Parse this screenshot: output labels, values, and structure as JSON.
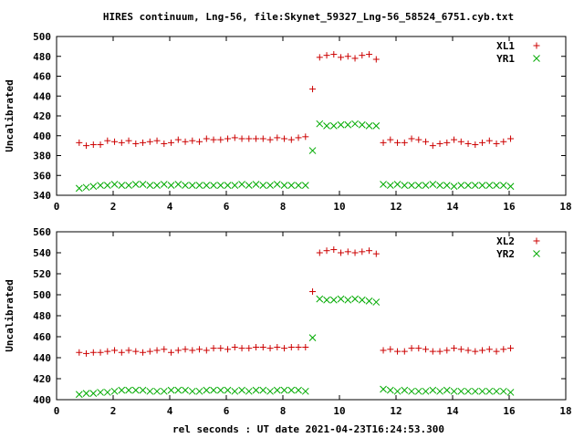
{
  "title": "HIRES continuum, Lng-56, file:Skynet_59327_Lng-56_58524_6751.cyb.txt",
  "xlabel": "rel seconds : UT date 2021-04-23T16:24:53.300",
  "chart_data": [
    {
      "type": "scatter",
      "ylabel": "Uncalibrated",
      "xlim": [
        0,
        18
      ],
      "ylim": [
        340,
        500
      ],
      "x_ticks": [
        0,
        2,
        4,
        6,
        8,
        10,
        12,
        14,
        16,
        18
      ],
      "y_ticks": [
        340,
        360,
        380,
        400,
        420,
        440,
        460,
        480,
        500
      ],
      "legend_position": "top-right",
      "x": [
        0.8,
        1.05,
        1.3,
        1.55,
        1.8,
        2.05,
        2.3,
        2.55,
        2.8,
        3.05,
        3.3,
        3.55,
        3.8,
        4.05,
        4.3,
        4.55,
        4.8,
        5.05,
        5.3,
        5.55,
        5.8,
        6.05,
        6.3,
        6.55,
        6.8,
        7.05,
        7.3,
        7.55,
        7.8,
        8.05,
        8.3,
        8.55,
        8.8,
        9.05,
        9.3,
        9.55,
        9.8,
        10.05,
        10.3,
        10.55,
        10.8,
        11.05,
        11.3,
        11.55,
        11.8,
        12.05,
        12.3,
        12.55,
        12.8,
        13.05,
        13.3,
        13.55,
        13.8,
        14.05,
        14.3,
        14.55,
        14.8,
        15.05,
        15.3,
        15.55,
        15.8,
        16.05
      ],
      "series": [
        {
          "name": "XL1",
          "color": "#cc0000",
          "marker": "plus",
          "values": [
            393,
            390,
            391,
            391,
            395,
            394,
            393,
            395,
            392,
            393,
            394,
            395,
            392,
            393,
            396,
            394,
            395,
            394,
            397,
            396,
            396,
            397,
            398,
            397,
            397,
            397,
            397,
            396,
            398,
            397,
            396,
            398,
            399,
            447,
            479,
            481,
            482,
            479,
            480,
            478,
            481,
            482,
            477,
            393,
            396,
            393,
            393,
            397,
            396,
            394,
            390,
            392,
            393,
            396,
            394,
            392,
            391,
            393,
            395,
            392,
            394,
            397
          ]
        },
        {
          "name": "YR1",
          "color": "#00aa00",
          "marker": "cross",
          "values": [
            347,
            348,
            349,
            350,
            350,
            351,
            350,
            350,
            351,
            351,
            350,
            350,
            351,
            350,
            351,
            350,
            350,
            350,
            350,
            350,
            350,
            350,
            350,
            351,
            350,
            351,
            350,
            350,
            351,
            350,
            350,
            350,
            350,
            385,
            412,
            410,
            410,
            411,
            411,
            412,
            411,
            410,
            410,
            351,
            350,
            351,
            350,
            350,
            350,
            350,
            351,
            350,
            350,
            349,
            350,
            350,
            350,
            350,
            350,
            350,
            350,
            349
          ]
        }
      ]
    },
    {
      "type": "scatter",
      "ylabel": "Uncalibrated",
      "xlim": [
        0,
        18
      ],
      "ylim": [
        400,
        560
      ],
      "x_ticks": [
        0,
        2,
        4,
        6,
        8,
        10,
        12,
        14,
        16,
        18
      ],
      "y_ticks": [
        400,
        420,
        440,
        460,
        480,
        500,
        520,
        540,
        560
      ],
      "legend_position": "top-right",
      "x": [
        0.8,
        1.05,
        1.3,
        1.55,
        1.8,
        2.05,
        2.3,
        2.55,
        2.8,
        3.05,
        3.3,
        3.55,
        3.8,
        4.05,
        4.3,
        4.55,
        4.8,
        5.05,
        5.3,
        5.55,
        5.8,
        6.05,
        6.3,
        6.55,
        6.8,
        7.05,
        7.3,
        7.55,
        7.8,
        8.05,
        8.3,
        8.55,
        8.8,
        9.05,
        9.3,
        9.55,
        9.8,
        10.05,
        10.3,
        10.55,
        10.8,
        11.05,
        11.3,
        11.55,
        11.8,
        12.05,
        12.3,
        12.55,
        12.8,
        13.05,
        13.3,
        13.55,
        13.8,
        14.05,
        14.3,
        14.55,
        14.8,
        15.05,
        15.3,
        15.55,
        15.8,
        16.05
      ],
      "series": [
        {
          "name": "XL2",
          "color": "#cc0000",
          "marker": "plus",
          "values": [
            445,
            444,
            445,
            445,
            446,
            447,
            445,
            447,
            446,
            445,
            446,
            447,
            448,
            445,
            447,
            448,
            447,
            448,
            447,
            449,
            449,
            448,
            450,
            449,
            449,
            450,
            450,
            449,
            450,
            449,
            450,
            450,
            450,
            503,
            540,
            542,
            543,
            540,
            541,
            540,
            541,
            542,
            539,
            447,
            448,
            446,
            446,
            449,
            449,
            448,
            446,
            446,
            447,
            449,
            448,
            447,
            446,
            447,
            448,
            446,
            448,
            449
          ]
        },
        {
          "name": "YR2",
          "color": "#00aa00",
          "marker": "cross",
          "values": [
            405,
            406,
            406,
            407,
            407,
            408,
            409,
            409,
            409,
            409,
            408,
            408,
            408,
            409,
            409,
            409,
            408,
            408,
            409,
            409,
            409,
            409,
            408,
            409,
            408,
            409,
            409,
            408,
            409,
            409,
            409,
            409,
            408,
            459,
            496,
            495,
            495,
            496,
            495,
            496,
            495,
            494,
            493,
            410,
            409,
            408,
            409,
            408,
            408,
            408,
            409,
            408,
            409,
            408,
            408,
            408,
            408,
            408,
            408,
            408,
            408,
            407
          ]
        }
      ]
    }
  ]
}
